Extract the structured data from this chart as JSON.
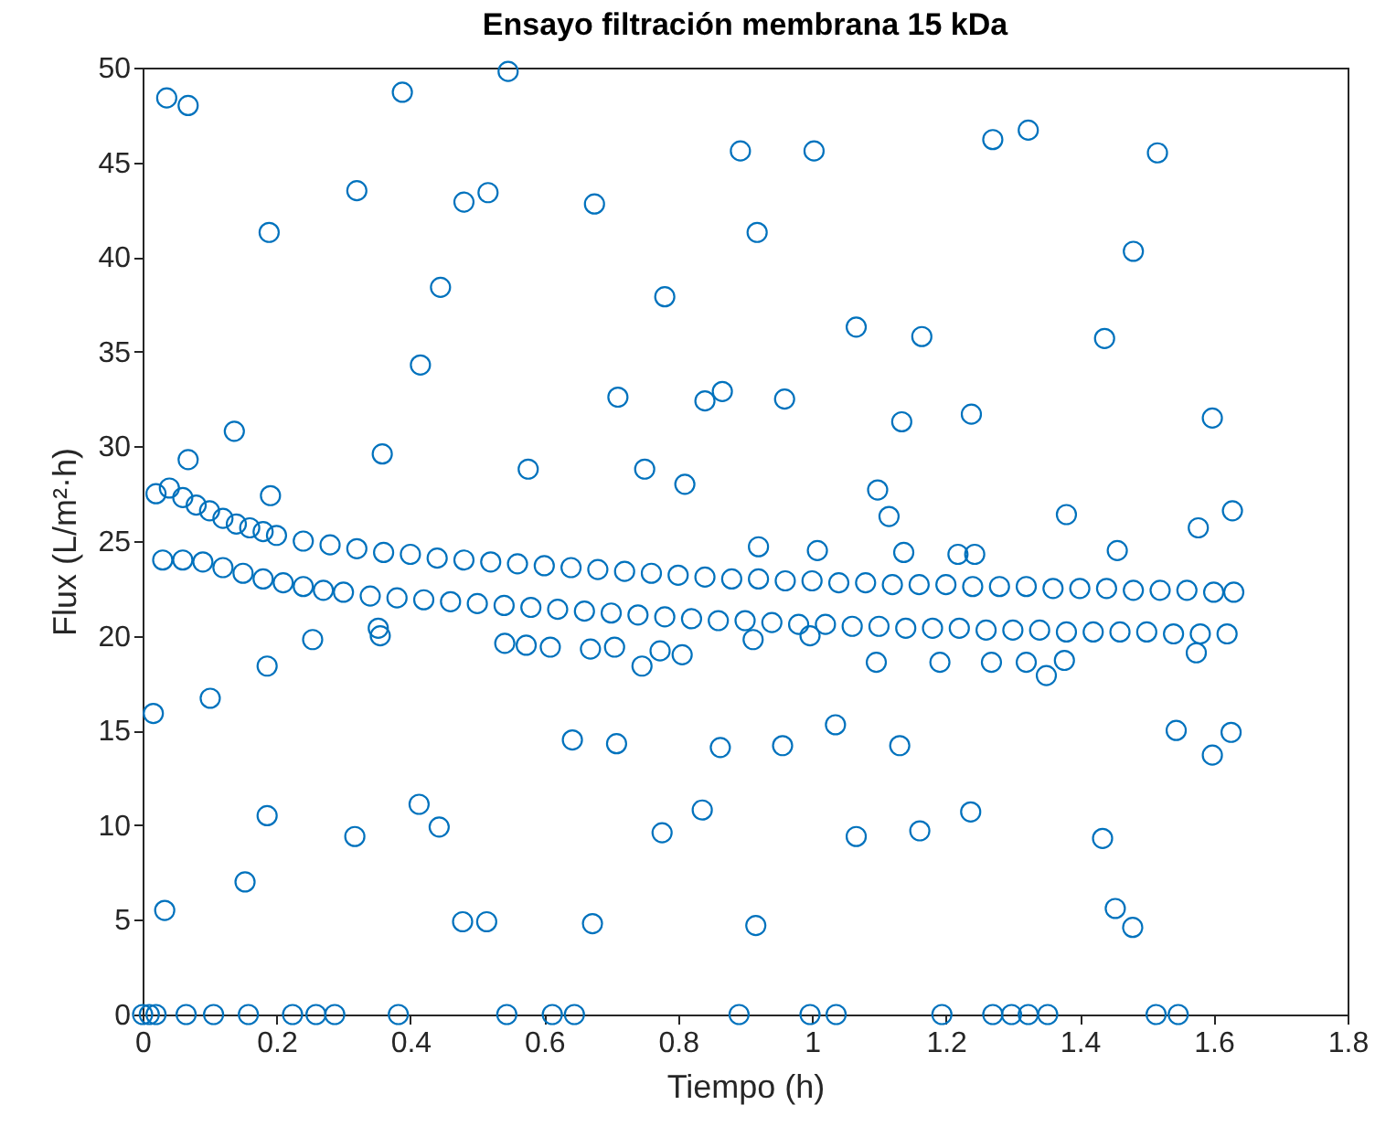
{
  "chart_data": {
    "type": "scatter",
    "title": "Ensayo filtración membrana 15 kDa",
    "xlabel": "Tiempo (h)",
    "ylabel": "Flux (L/m²·h)",
    "marker": "circle",
    "grid": false,
    "xlim": [
      0,
      1.8
    ],
    "xticks": [
      0,
      0.2,
      0.4,
      0.6,
      0.8,
      1,
      1.2,
      1.4,
      1.6,
      1.8
    ],
    "ylim": [
      0,
      50
    ],
    "yticks": [
      0,
      5,
      10,
      15,
      20,
      25,
      30,
      35,
      40,
      45,
      50
    ],
    "series": [
      {
        "color": "#0072bd",
        "x": [
          0,
          0.01,
          0.02,
          0.065,
          0.106,
          0.158,
          0.224,
          0.259,
          0.287,
          0.382,
          0.544,
          0.612,
          0.645,
          0.891,
          0.997,
          1.036,
          1.194,
          1.27,
          1.298,
          1.323,
          1.352,
          1.514,
          1.547,
          0.016,
          0.101,
          0.186,
          0.254,
          0.352,
          0.355,
          0.541,
          0.573,
          0.609,
          0.669,
          0.705,
          0.746,
          0.773,
          0.806,
          0.642,
          0.708,
          0.863,
          0.186,
          0.317,
          0.413,
          0.443,
          0.776,
          0.836,
          0.153,
          0.033,
          0.478,
          0.514,
          0.672,
          0.916,
          0.956,
          1.035,
          1.131,
          1.066,
          1.161,
          1.237,
          1.434,
          1.453,
          1.479,
          1.544,
          1.598,
          1.626,
          1.096,
          1.191,
          1.268,
          1.32,
          1.35,
          1.377,
          1.574,
          0.912,
          0.997,
          0.02,
          0.04,
          0.06,
          0.08,
          0.1,
          0.12,
          0.14,
          0.16,
          0.18,
          0.2,
          0.24,
          0.28,
          0.32,
          0.36,
          0.4,
          0.44,
          0.48,
          0.52,
          0.56,
          0.6,
          0.64,
          0.68,
          0.72,
          0.76,
          0.8,
          0.84,
          0.88,
          0.92,
          0.96,
          1,
          1.04,
          1.08,
          1.12,
          1.16,
          1.2,
          1.24,
          1.28,
          1.32,
          1.36,
          1.4,
          1.44,
          1.48,
          1.52,
          1.56,
          1.6,
          1.63,
          0.03,
          0.06,
          0.09,
          0.12,
          0.15,
          0.18,
          0.21,
          0.24,
          0.27,
          0.3,
          0.34,
          0.38,
          0.42,
          0.46,
          0.5,
          0.54,
          0.58,
          0.62,
          0.66,
          0.7,
          0.74,
          0.78,
          0.82,
          0.86,
          0.9,
          0.94,
          0.98,
          1.02,
          1.06,
          1.1,
          1.14,
          1.18,
          1.22,
          1.26,
          1.3,
          1.34,
          1.38,
          1.42,
          1.46,
          1.5,
          1.54,
          1.58,
          1.62,
          0.036,
          0.068,
          0.388,
          0.546,
          0.32,
          0.48,
          0.516,
          0.675,
          0.189,
          0.415,
          0.445,
          0.358,
          0.137,
          0.576,
          0.191,
          0.068,
          0.71,
          0.78,
          0.75,
          0.81,
          0.84,
          0.866,
          0.893,
          1.003,
          1.27,
          1.323,
          1.516,
          0.918,
          1.48,
          1.066,
          1.164,
          1.437,
          0.959,
          1.134,
          1.238,
          1.598,
          1.098,
          1.115,
          1.38,
          1.577,
          1.628,
          0.92,
          1.008,
          1.137,
          1.218,
          1.243,
          1.456
        ],
        "values": [
          0,
          0,
          0,
          0,
          0,
          0,
          0,
          0,
          0,
          0,
          0,
          0,
          0,
          0,
          0,
          0,
          0,
          0,
          0,
          0,
          0,
          0,
          0,
          15.9,
          16.7,
          18.4,
          19.8,
          20.4,
          20,
          19.6,
          19.5,
          19.4,
          19.3,
          19.4,
          18.4,
          19.2,
          19,
          14.5,
          14.3,
          14.1,
          10.5,
          9.4,
          11.1,
          9.9,
          9.6,
          10.8,
          7,
          5.5,
          4.9,
          4.9,
          4.8,
          4.7,
          14.2,
          15.3,
          14.2,
          9.4,
          9.7,
          10.7,
          9.3,
          5.6,
          4.6,
          15,
          13.7,
          14.9,
          18.6,
          18.6,
          18.6,
          18.6,
          17.9,
          18.7,
          19.1,
          19.8,
          20,
          27.5,
          27.8,
          27.3,
          26.9,
          26.6,
          26.2,
          25.9,
          25.7,
          25.5,
          25.3,
          25,
          24.8,
          24.6,
          24.4,
          24.3,
          24.1,
          24,
          23.9,
          23.8,
          23.7,
          23.6,
          23.5,
          23.4,
          23.3,
          23.2,
          23.1,
          23,
          23,
          22.9,
          22.9,
          22.8,
          22.8,
          22.7,
          22.7,
          22.7,
          22.6,
          22.6,
          22.6,
          22.5,
          22.5,
          22.5,
          22.4,
          22.4,
          22.4,
          22.3,
          22.3,
          24,
          24,
          23.9,
          23.6,
          23.3,
          23,
          22.8,
          22.6,
          22.4,
          22.3,
          22.1,
          22,
          21.9,
          21.8,
          21.7,
          21.6,
          21.5,
          21.4,
          21.3,
          21.2,
          21.1,
          21,
          20.9,
          20.8,
          20.8,
          20.7,
          20.6,
          20.6,
          20.5,
          20.5,
          20.4,
          20.4,
          20.4,
          20.3,
          20.3,
          20.3,
          20.2,
          20.2,
          20.2,
          20.2,
          20.1,
          20.1,
          20.1,
          48.4,
          48,
          48.7,
          49.8,
          43.5,
          42.9,
          43.4,
          42.8,
          41.3,
          34.3,
          38.4,
          29.6,
          30.8,
          28.8,
          27.4,
          29.3,
          32.6,
          37.9,
          28.8,
          28,
          32.4,
          32.9,
          45.6,
          45.6,
          46.2,
          46.7,
          45.5,
          41.3,
          40.3,
          36.3,
          35.8,
          35.7,
          32.5,
          31.3,
          31.7,
          31.5,
          27.7,
          26.3,
          26.4,
          25.7,
          26.6,
          24.7,
          24.5,
          24.4,
          24.3,
          24.3,
          24.5
        ]
      }
    ]
  }
}
